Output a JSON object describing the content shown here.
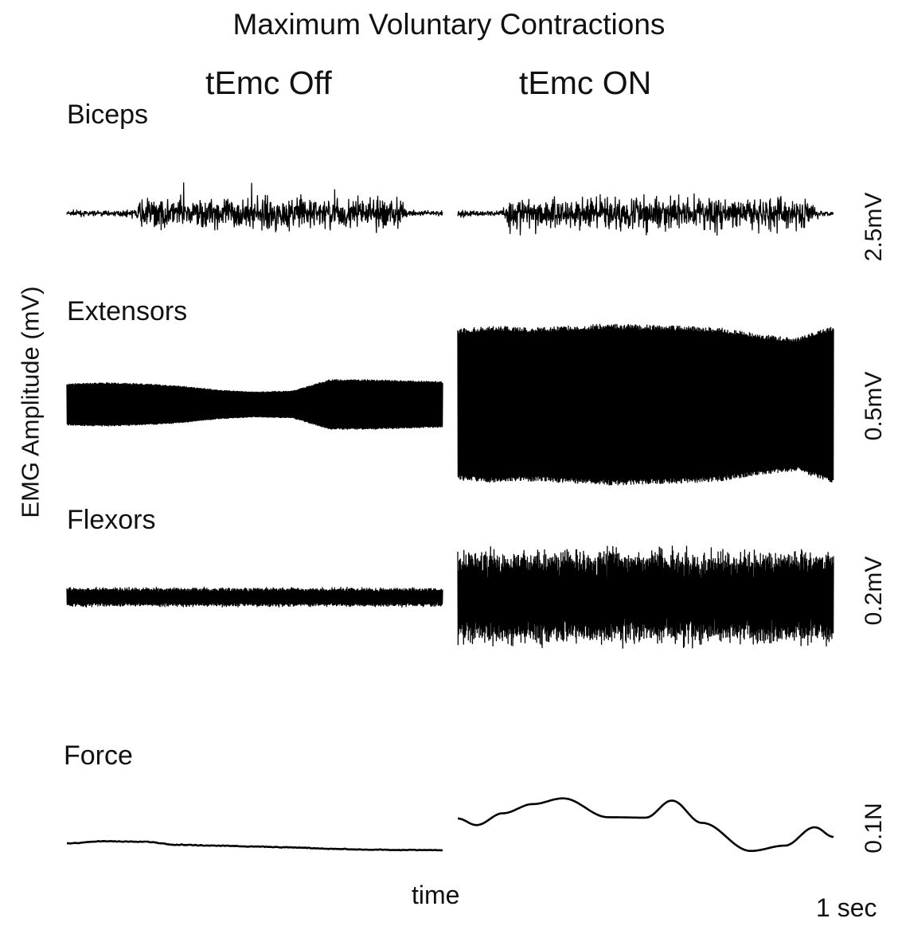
{
  "title": "Maximum Voluntary Contractions",
  "conditions": {
    "off": "tEmc Off",
    "on": "tEmc ON"
  },
  "ylabel": "EMG Amplitude (mV)",
  "xlabel": "time",
  "time_scale_bar": "1 sec",
  "chart_data": {
    "type": "line",
    "title": "Maximum Voluntary Contractions",
    "ylabel": "EMG Amplitude (mV)",
    "xlabel": "time",
    "columns": [
      "tEmc Off",
      "tEmc ON"
    ],
    "panels": [
      {
        "name": "Biceps",
        "scale_bar": "2.5mV",
        "unit": "mV",
        "scale": 2.5,
        "off": {
          "baseline_amplitude": 0.28,
          "active_amplitude": 1.6,
          "active_window": [
            0.18,
            0.9
          ]
        },
        "on": {
          "baseline_amplitude": 0.3,
          "active_amplitude": 1.7,
          "active_window": [
            0.12,
            0.95
          ]
        }
      },
      {
        "name": "Extensors",
        "scale_bar": "0.5mV",
        "unit": "mV",
        "scale": 0.5,
        "off": {
          "envelope_amplitude": [
            0.2,
            0.21,
            0.2,
            0.18,
            0.14,
            0.12,
            0.13,
            0.24,
            0.24,
            0.23,
            0.22
          ]
        },
        "on": {
          "envelope_amplitude": [
            0.73,
            0.76,
            0.74,
            0.76,
            0.78,
            0.77,
            0.76,
            0.74,
            0.68,
            0.64,
            0.76
          ]
        }
      },
      {
        "name": "Flexors",
        "scale_bar": "0.2mV",
        "unit": "mV",
        "scale": 0.2,
        "off": {
          "baseline_amplitude": 0.033,
          "active_amplitude": 0.05
        },
        "on": {
          "baseline_amplitude": 0.16,
          "active_amplitude": 0.27
        }
      },
      {
        "name": "Force",
        "scale_bar": "0.1N",
        "unit": "N",
        "scale": 0.1,
        "off": {
          "t": [
            0,
            0.1,
            0.2,
            0.3,
            0.4,
            0.5,
            0.6,
            0.7,
            0.8,
            0.9,
            1.0
          ],
          "force": [
            0.023,
            0.028,
            0.027,
            0.02,
            0.018,
            0.016,
            0.014,
            0.011,
            0.009,
            0.008,
            0.008
          ]
        },
        "on": {
          "t": [
            0,
            0.05,
            0.12,
            0.2,
            0.28,
            0.4,
            0.5,
            0.57,
            0.65,
            0.78,
            0.87,
            0.95,
            1.0
          ],
          "force": [
            0.08,
            0.065,
            0.092,
            0.113,
            0.126,
            0.083,
            0.082,
            0.121,
            0.07,
            0.006,
            0.018,
            0.06,
            0.038
          ]
        }
      }
    ]
  }
}
